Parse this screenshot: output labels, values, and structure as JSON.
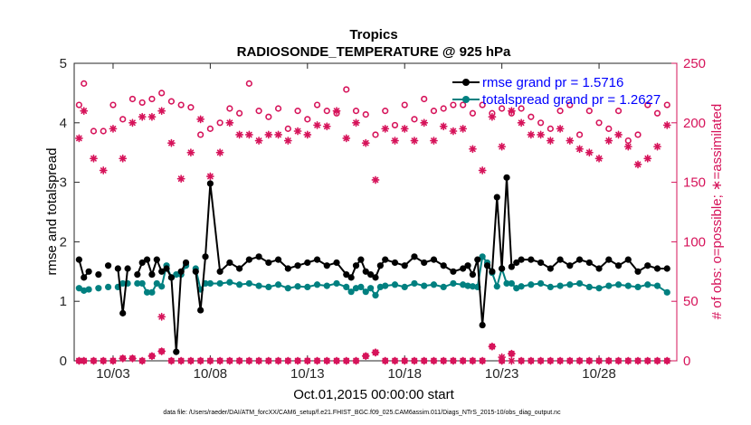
{
  "chart_data": {
    "type": "line",
    "title": "Tropics",
    "subtitle": "RADIOSONDE_TEMPERATURE @ 925 hPa",
    "xlabel": "Oct.01,2015 00:00:00 start",
    "ylabel_left": "rmse and totalspread",
    "ylabel_right": "# of obs: o=possible; ∗=assimilated",
    "footnote": "data file: /Users/raeder/DAI/ATM_forcXX/CAM6_setup/f.e21.FHIST_BGC.f09_025.CAM6assim.011/Diags_NTrS_2015-10/obs_diag_output.nc",
    "x_ticks": [
      3,
      8,
      13,
      18,
      23,
      28
    ],
    "x_tick_labels": [
      "10/03",
      "10/08",
      "10/13",
      "10/18",
      "10/23",
      "10/28"
    ],
    "xlim": [
      1.0,
      32.0
    ],
    "ylim_left": [
      0,
      5
    ],
    "yticks_left": [
      0,
      1,
      2,
      3,
      4,
      5
    ],
    "ylim_right": [
      0,
      250
    ],
    "yticks_right": [
      0,
      50,
      100,
      150,
      200,
      250
    ],
    "colors": {
      "rmse": "#000000",
      "spread": "#008080",
      "obs": "#d6135a",
      "legend_text": "#0000ff"
    },
    "legend": [
      {
        "name": "rmse",
        "label": "rmse grand pr = 1.5716"
      },
      {
        "name": "totalspread",
        "label": "totalspread grand pr = 1.2627"
      }
    ],
    "rmse_x": [
      1.25,
      1.5,
      1.75,
      2.0,
      2.25,
      2.5,
      2.75,
      3.0,
      3.25,
      3.5,
      3.75,
      4.0,
      4.25,
      4.5,
      4.75,
      5.0,
      5.25,
      5.5,
      5.75,
      6.0,
      6.25,
      6.5,
      6.75,
      7.0,
      7.25,
      7.5,
      7.75,
      8.0,
      8.5,
      9.0,
      9.5,
      10.0,
      10.5,
      11.0,
      11.5,
      12.0,
      12.5,
      13.0,
      13.5,
      14.0,
      14.5,
      15.0,
      15.25,
      15.5,
      15.75,
      16.0,
      16.25,
      16.5,
      16.75,
      17.0,
      17.5,
      18.0,
      18.5,
      19.0,
      19.5,
      20.0,
      20.5,
      21.0,
      21.25,
      21.5,
      21.75,
      22.0,
      22.25,
      22.5,
      22.75,
      23.0,
      23.25,
      23.5,
      23.75,
      24.0,
      24.5,
      25.0,
      25.5,
      26.0,
      26.5,
      27.0,
      27.5,
      28.0,
      28.5,
      29.0,
      29.5,
      30.0,
      30.5,
      31.0,
      31.5
    ],
    "rmse_y": [
      1.7,
      1.4,
      1.5,
      null,
      1.45,
      null,
      1.6,
      null,
      1.55,
      0.8,
      1.55,
      null,
      1.45,
      1.65,
      1.7,
      1.45,
      1.7,
      1.5,
      1.55,
      1.4,
      0.15,
      1.5,
      1.65,
      null,
      1.5,
      0.85,
      1.75,
      2.98,
      1.5,
      1.65,
      1.55,
      1.7,
      1.75,
      1.65,
      1.7,
      1.55,
      1.6,
      1.65,
      1.7,
      1.6,
      1.65,
      1.45,
      1.4,
      1.6,
      1.7,
      1.5,
      1.45,
      1.4,
      1.6,
      1.7,
      1.65,
      1.6,
      1.75,
      1.65,
      1.7,
      1.6,
      1.5,
      1.55,
      1.6,
      1.45,
      1.7,
      0.6,
      1.6,
      1.5,
      2.75,
      1.55,
      3.08,
      1.58,
      1.65,
      1.7,
      1.7,
      1.65,
      1.55,
      1.7,
      1.6,
      1.7,
      1.65,
      1.55,
      1.7,
      1.6,
      1.7,
      1.5,
      1.6,
      1.55,
      1.55
    ],
    "spread_x": [
      1.25,
      1.5,
      1.75,
      2.0,
      2.25,
      2.5,
      2.75,
      3.0,
      3.25,
      3.5,
      3.75,
      4.0,
      4.25,
      4.5,
      4.75,
      5.0,
      5.25,
      5.5,
      5.75,
      6.0,
      6.25,
      6.5,
      6.75,
      7.0,
      7.25,
      7.5,
      7.75,
      8.0,
      8.5,
      9.0,
      9.5,
      10.0,
      10.5,
      11.0,
      11.5,
      12.0,
      12.5,
      13.0,
      13.5,
      14.0,
      14.5,
      15.0,
      15.25,
      15.5,
      15.75,
      16.0,
      16.25,
      16.5,
      16.75,
      17.0,
      17.5,
      18.0,
      18.5,
      19.0,
      19.5,
      20.0,
      20.5,
      21.0,
      21.25,
      21.5,
      21.75,
      22.0,
      22.25,
      22.5,
      22.75,
      23.0,
      23.25,
      23.5,
      23.75,
      24.0,
      24.5,
      25.0,
      25.5,
      26.0,
      26.5,
      27.0,
      27.5,
      28.0,
      28.5,
      29.0,
      29.5,
      30.0,
      30.5,
      31.0,
      31.5
    ],
    "spread_y": [
      1.22,
      1.18,
      1.2,
      null,
      1.22,
      null,
      1.24,
      null,
      1.24,
      1.3,
      1.3,
      null,
      1.3,
      1.3,
      1.15,
      1.15,
      1.3,
      1.25,
      1.6,
      1.4,
      1.45,
      1.45,
      1.6,
      null,
      1.55,
      1.2,
      1.3,
      1.3,
      1.3,
      1.32,
      1.28,
      1.3,
      1.26,
      1.24,
      1.28,
      1.22,
      1.25,
      1.24,
      1.28,
      1.26,
      1.3,
      1.24,
      1.16,
      1.22,
      1.24,
      1.16,
      1.22,
      1.1,
      1.24,
      1.26,
      1.28,
      1.24,
      1.3,
      1.26,
      1.28,
      1.24,
      1.3,
      1.28,
      1.26,
      1.25,
      1.24,
      1.75,
      1.65,
      1.48,
      1.25,
      1.55,
      1.3,
      1.3,
      1.22,
      1.25,
      1.28,
      1.3,
      1.24,
      1.26,
      1.28,
      1.3,
      1.24,
      1.22,
      1.26,
      1.28,
      1.26,
      1.24,
      1.28,
      1.26,
      1.15
    ],
    "possible_x": [
      1.25,
      1.5,
      2.0,
      2.5,
      3.0,
      3.5,
      4.0,
      4.5,
      5.0,
      5.5,
      6.0,
      6.5,
      7.0,
      7.5,
      8.0,
      8.5,
      9.0,
      9.5,
      10.0,
      10.5,
      11.0,
      11.5,
      12.0,
      12.5,
      13.0,
      13.5,
      14.0,
      14.5,
      15.0,
      15.5,
      16.0,
      16.5,
      17.0,
      17.5,
      18.0,
      18.5,
      19.0,
      19.5,
      20.0,
      20.5,
      21.0,
      21.5,
      22.0,
      22.5,
      23.0,
      23.5,
      24.0,
      24.5,
      25.0,
      25.5,
      26.0,
      26.5,
      27.0,
      27.5,
      28.0,
      28.5,
      29.0,
      29.5,
      30.0,
      30.5,
      31.0,
      31.5
    ],
    "possible_y": [
      215,
      233,
      193,
      193,
      215,
      203,
      220,
      217,
      220,
      225,
      218,
      215,
      213,
      190,
      195,
      200,
      212,
      208,
      233,
      210,
      205,
      212,
      195,
      210,
      203,
      215,
      210,
      208,
      228,
      210,
      207,
      190,
      210,
      198,
      215,
      203,
      220,
      210,
      212,
      215,
      215,
      208,
      215,
      208,
      212,
      208,
      212,
      205,
      200,
      195,
      210,
      215,
      190,
      210,
      200,
      195,
      210,
      185,
      190,
      215,
      208,
      215
    ],
    "assim_x": [
      1.25,
      1.5,
      2.0,
      2.5,
      3.0,
      3.5,
      4.0,
      4.5,
      5.0,
      5.5,
      6.0,
      6.5,
      7.0,
      7.5,
      8.0,
      8.5,
      9.0,
      9.5,
      10.0,
      10.5,
      11.0,
      11.5,
      12.0,
      12.5,
      13.0,
      13.5,
      14.0,
      14.5,
      15.0,
      15.5,
      16.0,
      16.5,
      17.0,
      17.5,
      18.0,
      18.5,
      19.0,
      19.5,
      20.0,
      20.5,
      21.0,
      21.5,
      22.0,
      22.5,
      23.0,
      23.5,
      24.0,
      24.5,
      25.0,
      25.5,
      26.0,
      26.5,
      27.0,
      27.5,
      28.0,
      28.5,
      29.0,
      29.5,
      30.0,
      30.5,
      31.0,
      31.5
    ],
    "assim_y": [
      187,
      210,
      170,
      160,
      195,
      170,
      200,
      205,
      205,
      210,
      183,
      153,
      175,
      203,
      155,
      175,
      200,
      190,
      190,
      185,
      190,
      190,
      185,
      193,
      190,
      198,
      197,
      210,
      187,
      200,
      183,
      152,
      195,
      185,
      195,
      185,
      200,
      185,
      197,
      193,
      195,
      178,
      160,
      205,
      180,
      210,
      200,
      190,
      190,
      185,
      195,
      185,
      178,
      175,
      170,
      185,
      190,
      180,
      165,
      170,
      180,
      198
    ],
    "bottom_x": [
      1.25,
      1.5,
      2.0,
      2.5,
      3.0,
      3.5,
      4.0,
      4.5,
      5.0,
      5.5,
      6.0,
      6.5,
      7.0,
      7.5,
      8.0,
      8.5,
      9.0,
      9.5,
      10.0,
      10.5,
      11.0,
      11.5,
      12.0,
      12.5,
      13.0,
      13.5,
      14.0,
      14.5,
      15.0,
      15.5,
      16.0,
      16.5,
      17.0,
      17.5,
      18.0,
      18.5,
      19.0,
      19.5,
      20.0,
      20.5,
      21.0,
      21.5,
      22.0,
      22.5,
      23.0,
      23.5,
      24.0,
      24.5,
      25.0,
      25.5,
      26.0,
      26.5,
      27.0,
      27.5,
      28.0,
      28.5,
      29.0,
      29.5,
      30.0,
      30.5,
      31.0,
      31.5
    ],
    "bottom_y": [
      0,
      0,
      0,
      0,
      0,
      2,
      2,
      0,
      4,
      8,
      0,
      0,
      0,
      0,
      0,
      0,
      0,
      0,
      0,
      0,
      0,
      0,
      0,
      0,
      0,
      0,
      0,
      0,
      0,
      0,
      4,
      7,
      0,
      0,
      0,
      0,
      0,
      0,
      0,
      0,
      0,
      0,
      0,
      12,
      0,
      6,
      0,
      0,
      0,
      0,
      0,
      0,
      0,
      0,
      0,
      0,
      0,
      0,
      0,
      0,
      0,
      0
    ],
    "extra_assim_x": [
      5.5,
      16.5,
      23.0,
      23.5
    ],
    "extra_assim_y": [
      37,
      7,
      3,
      0
    ]
  }
}
